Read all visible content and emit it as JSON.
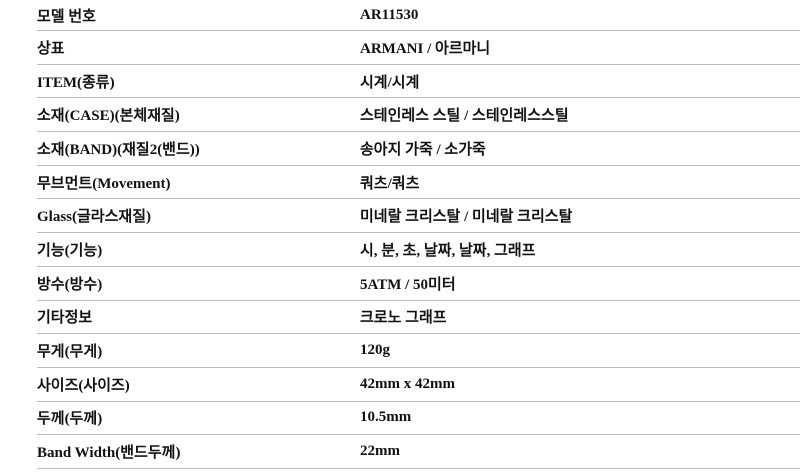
{
  "table": {
    "colors": {
      "border": "#bdbdbd",
      "text": "#111111",
      "background": "#ffffff"
    },
    "rows": [
      {
        "label": "모델 번호",
        "value": "AR11530"
      },
      {
        "label": "상표",
        "value": "ARMANI / 아르마니"
      },
      {
        "label": "ITEM(종류)",
        "value": "시계/시계"
      },
      {
        "label": "소재(CASE)(본체재질)",
        "value": "스테인레스 스틸 / 스테인레스스틸"
      },
      {
        "label": "소재(BAND)(재질2(밴드))",
        "value": "송아지 가죽 / 소가죽"
      },
      {
        "label": "무브먼트(Movement)",
        "value": "쿼츠/쿼츠"
      },
      {
        "label": "Glass(글라스재질)",
        "value": "미네랄 크리스탈 / 미네랄 크리스탈"
      },
      {
        "label": "기능(기능)",
        "value": "시, 분, 초, 날짜, 날짜, 그래프"
      },
      {
        "label": "방수(방수)",
        "value": "5ATM / 50미터"
      },
      {
        "label": "기타정보",
        "value": "크로노 그래프"
      },
      {
        "label": "무게(무게)",
        "value": "120g"
      },
      {
        "label": "사이즈(사이즈)",
        "value": "42mm x 42mm"
      },
      {
        "label": "두께(두께)",
        "value": "10.5mm"
      },
      {
        "label": "Band Width(밴드두께)",
        "value": "22mm"
      }
    ]
  }
}
